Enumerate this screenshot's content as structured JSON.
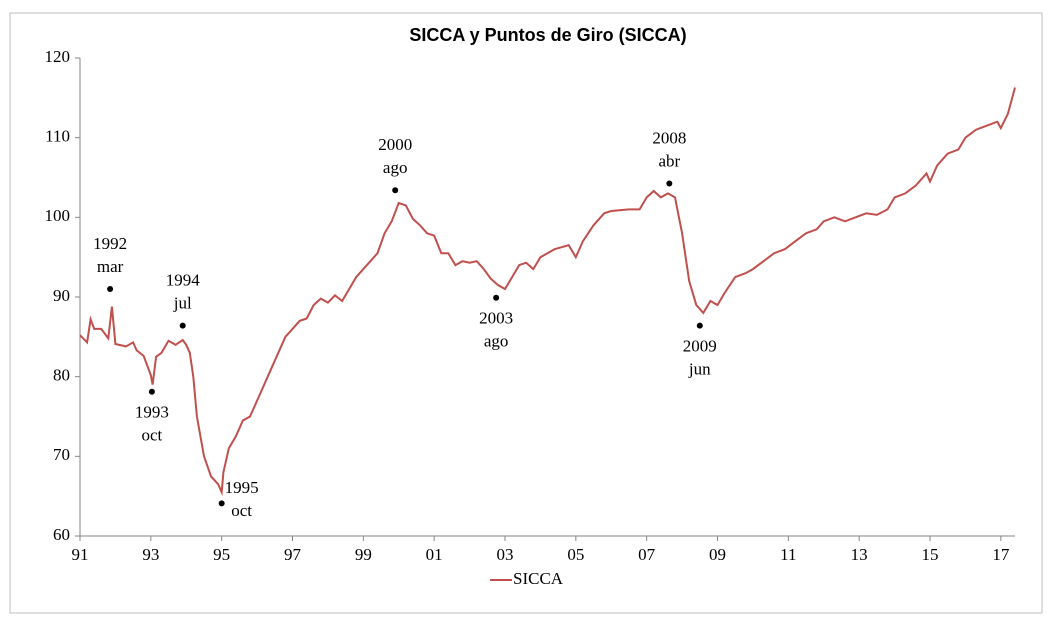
{
  "chart_data": {
    "type": "line",
    "title": "SICCA y Puntos de Giro (SICCA)",
    "x": [
      1991.0,
      1991.2,
      1991.3,
      1991.4,
      1991.6,
      1991.8,
      1991.9,
      1992.0,
      1992.3,
      1992.5,
      1992.6,
      1992.8,
      1993.0,
      1993.05,
      1993.15,
      1993.3,
      1993.5,
      1993.7,
      1993.9,
      1994.0,
      1994.1,
      1994.2,
      1994.3,
      1994.5,
      1994.7,
      1994.9,
      1995.0,
      1995.05,
      1995.2,
      1995.4,
      1995.6,
      1995.8,
      1996.0,
      1996.3,
      1996.6,
      1996.8,
      1997.0,
      1997.2,
      1997.4,
      1997.6,
      1997.8,
      1998.0,
      1998.2,
      1998.4,
      1998.6,
      1998.8,
      1999.0,
      1999.2,
      1999.4,
      1999.6,
      1999.8,
      2000.0,
      2000.2,
      2000.4,
      2000.6,
      2000.8,
      2001.0,
      2001.2,
      2001.4,
      2001.6,
      2001.8,
      2002.0,
      2002.2,
      2002.4,
      2002.6,
      2002.8,
      2003.0,
      2003.2,
      2003.4,
      2003.6,
      2003.8,
      2004.0,
      2004.4,
      2004.8,
      2005.0,
      2005.2,
      2005.5,
      2005.8,
      2006.0,
      2006.5,
      2006.8,
      2007.0,
      2007.2,
      2007.4,
      2007.6,
      2007.8,
      2008.0,
      2008.2,
      2008.4,
      2008.6,
      2008.8,
      2009.0,
      2009.2,
      2009.5,
      2009.8,
      2010.0,
      2010.3,
      2010.6,
      2010.9,
      2011.2,
      2011.5,
      2011.8,
      2012.0,
      2012.3,
      2012.6,
      2012.9,
      2013.2,
      2013.5,
      2013.8,
      2014.0,
      2014.3,
      2014.6,
      2014.9,
      2015.0,
      2015.2,
      2015.5,
      2015.8,
      2016.0,
      2016.3,
      2016.6,
      2016.9,
      2017.0,
      2017.2,
      2017.4
    ],
    "series": [
      {
        "name": "SICCA",
        "color": "#c0504d",
        "values": [
          85.2,
          84.3,
          87.2,
          86,
          86,
          84.8,
          88.8,
          84.1,
          83.8,
          84.3,
          83.3,
          82.6,
          80.2,
          79,
          82.5,
          83,
          84.5,
          84,
          84.6,
          84,
          83,
          80,
          75,
          70,
          67.5,
          66.5,
          65.5,
          68,
          71,
          72.5,
          74.5,
          75,
          77,
          80,
          83,
          85,
          86,
          87,
          87.3,
          89,
          89.8,
          89.3,
          90.2,
          89.5,
          91,
          92.5,
          93.5,
          94.5,
          95.5,
          98,
          99.5,
          101.8,
          101.5,
          99.8,
          99,
          98,
          97.7,
          95.5,
          95.5,
          94,
          94.5,
          94.3,
          94.5,
          93.5,
          92.3,
          91.5,
          91,
          92.5,
          94,
          94.3,
          93.5,
          95,
          96,
          96.5,
          95,
          97,
          99,
          100.5,
          100.8,
          101,
          101,
          102.5,
          103.3,
          102.5,
          103,
          102.5,
          98,
          92,
          89,
          88,
          89.5,
          89,
          90.5,
          92.5,
          93,
          93.5,
          94.5,
          95.5,
          96,
          97,
          98,
          98.5,
          99.5,
          100,
          99.5,
          100,
          100.5,
          100.3,
          101,
          102.5,
          103,
          104,
          105.5,
          104.5,
          106.5,
          108,
          108.5,
          110,
          111,
          111.5,
          112,
          111.2,
          113,
          116.3
        ]
      }
    ],
    "xlim": [
      1991,
      2017.4
    ],
    "xticks": [
      {
        "value": 1991,
        "label": "91"
      },
      {
        "value": 1993,
        "label": "93"
      },
      {
        "value": 1995,
        "label": "95"
      },
      {
        "value": 1997,
        "label": "97"
      },
      {
        "value": 1999,
        "label": "99"
      },
      {
        "value": 2001,
        "label": "01"
      },
      {
        "value": 2003,
        "label": "03"
      },
      {
        "value": 2005,
        "label": "05"
      },
      {
        "value": 2007,
        "label": "07"
      },
      {
        "value": 2009,
        "label": "09"
      },
      {
        "value": 2011,
        "label": "11"
      },
      {
        "value": 2013,
        "label": "13"
      },
      {
        "value": 2015,
        "label": "15"
      },
      {
        "value": 2017,
        "label": "17"
      }
    ],
    "ylim": [
      60,
      120
    ],
    "yticks": [
      60,
      70,
      80,
      90,
      100,
      110,
      120
    ],
    "legend": "bottom",
    "annotations": [
      {
        "x": 1991.85,
        "y": 91,
        "label": [
          "1992",
          "mar"
        ],
        "position": "above"
      },
      {
        "x": 1993.03,
        "y": 78.1,
        "label": [
          "1993",
          "oct"
        ],
        "position": "below"
      },
      {
        "x": 1993.9,
        "y": 86.4,
        "label": [
          "1994",
          "jul"
        ],
        "position": "above"
      },
      {
        "x": 1995.0,
        "y": 64.1,
        "label": [
          "1995",
          "oct"
        ],
        "position": "right"
      },
      {
        "x": 1999.9,
        "y": 103.4,
        "label": [
          "2000",
          "ago"
        ],
        "position": "above"
      },
      {
        "x": 2002.75,
        "y": 89.9,
        "label": [
          "2003",
          "ago"
        ],
        "position": "below"
      },
      {
        "x": 2007.64,
        "y": 104.25,
        "label": [
          "2008",
          "abr"
        ],
        "position": "above"
      },
      {
        "x": 2008.5,
        "y": 86.4,
        "label": [
          "2009",
          "jun"
        ],
        "position": "below"
      }
    ]
  }
}
